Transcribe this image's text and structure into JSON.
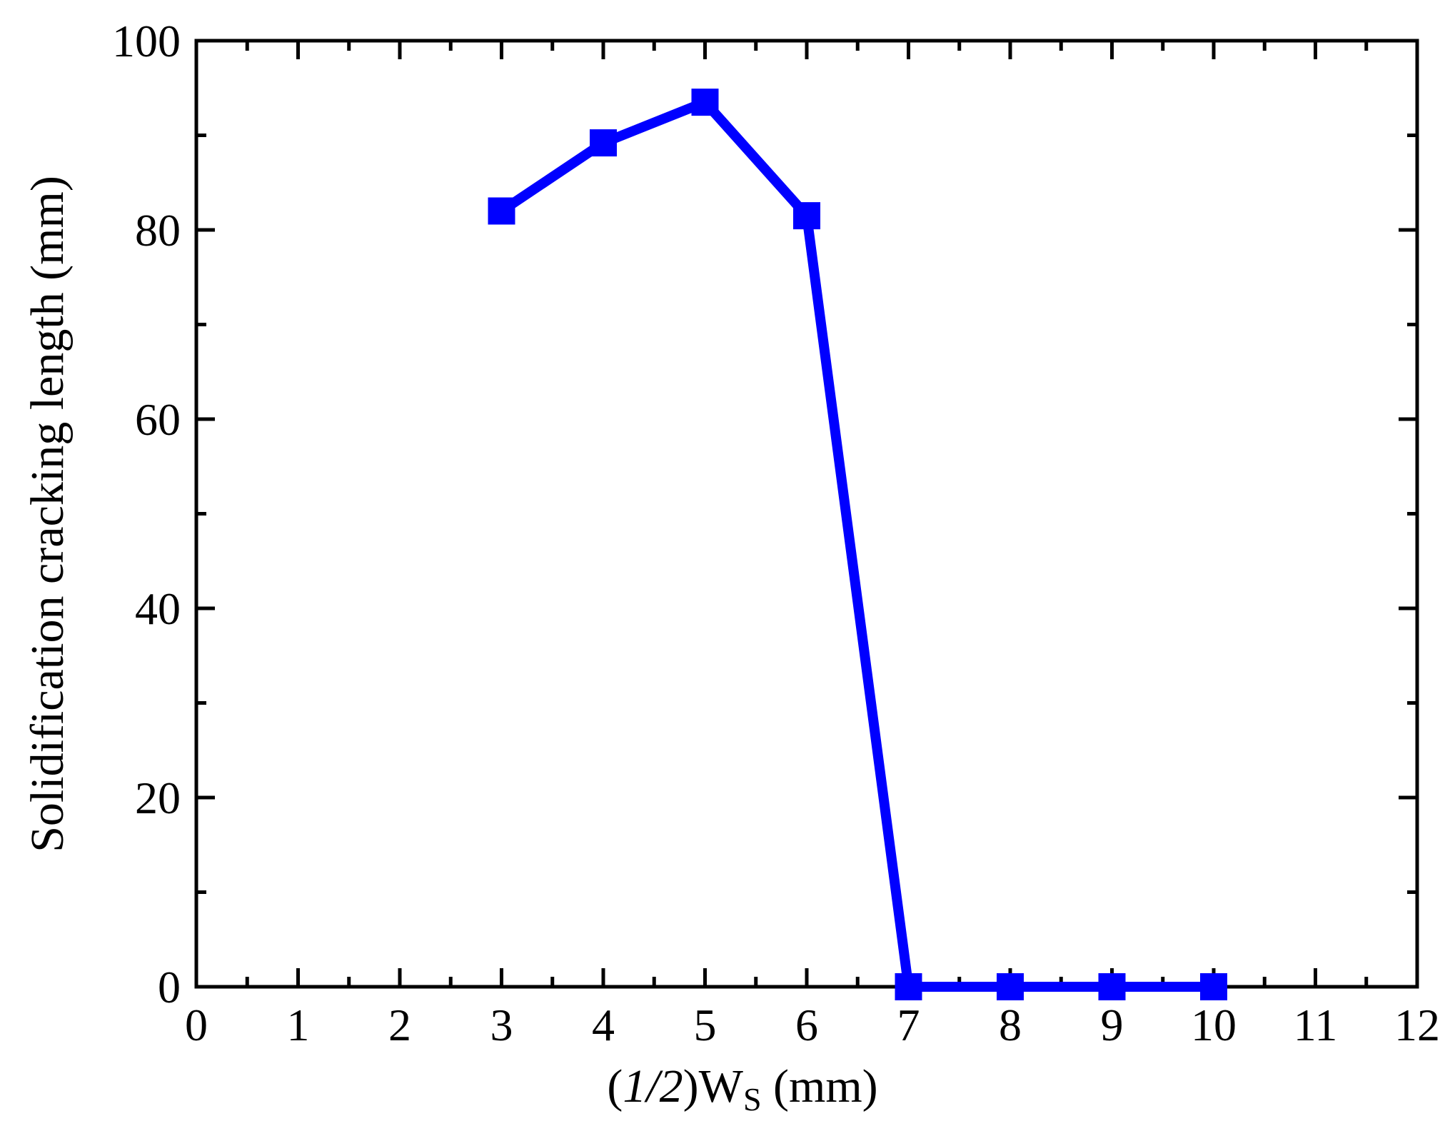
{
  "chart_data": {
    "type": "line",
    "title": "",
    "xlabel": {
      "prefix": "(",
      "italic": "1/2",
      "main": ")W",
      "subscript": "S",
      "suffix": " (mm)"
    },
    "ylabel": "Solidification cracking length (mm)",
    "xlim": [
      0,
      12
    ],
    "ylim": [
      0,
      100
    ],
    "x_ticks": [
      "0",
      "1",
      "2",
      "3",
      "4",
      "5",
      "6",
      "7",
      "8",
      "9",
      "10",
      "11",
      "12"
    ],
    "y_ticks": [
      "0",
      "20",
      "40",
      "60",
      "80",
      "100"
    ],
    "x_minor_step": 0.5,
    "y_minor_step": 10,
    "grid": false,
    "legend": "none",
    "series": [
      {
        "color": "#0000ff",
        "marker": "square",
        "x": [
          3,
          4,
          5,
          6,
          7,
          8,
          9,
          10
        ],
        "y": [
          82.0,
          89.2,
          93.5,
          81.5,
          0,
          0,
          0,
          0
        ]
      }
    ]
  }
}
